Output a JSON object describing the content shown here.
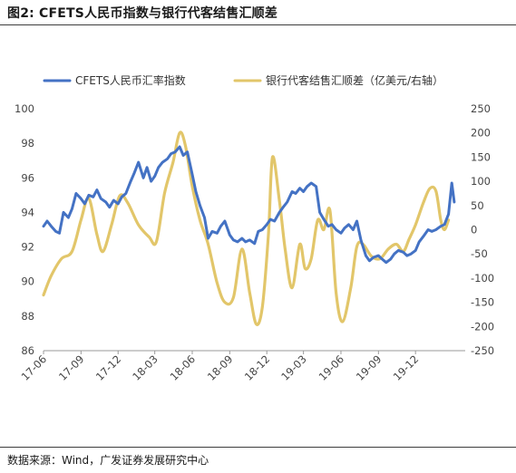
{
  "header": {
    "title": "图2:  CFETS人民币指数与银行代客结售汇顺差"
  },
  "footer": {
    "source": "数据来源：Wind，广发证券发展研究中心"
  },
  "chart_data": {
    "type": "line",
    "title": "",
    "xlabel": "",
    "ylabel": "",
    "x_tick_labels": [
      "17-06",
      "17-09",
      "17-12",
      "18-03",
      "18-06",
      "18-09",
      "18-12",
      "19-03",
      "19-06",
      "19-09",
      "19-12"
    ],
    "x_range": [
      "2017-06",
      "2020-04"
    ],
    "y_left": {
      "range": [
        86,
        100
      ],
      "ticks": [
        86,
        88,
        90,
        92,
        94,
        96,
        98,
        100
      ]
    },
    "y_right": {
      "range": [
        -250,
        250
      ],
      "ticks": [
        -250,
        -200,
        -150,
        -100,
        -50,
        0,
        50,
        100,
        150,
        200,
        250
      ]
    },
    "legend_position": "top",
    "grid": false,
    "series": [
      {
        "name": "CFETS人民币汇率指数",
        "color": "#4472c4",
        "axis": "left",
        "points": [
          [
            "2017-06-01",
            93.2
          ],
          [
            "2017-06-10",
            93.5
          ],
          [
            "2017-06-20",
            93.2
          ],
          [
            "2017-07-01",
            92.9
          ],
          [
            "2017-07-10",
            92.8
          ],
          [
            "2017-07-20",
            94.0
          ],
          [
            "2017-08-01",
            93.7
          ],
          [
            "2017-08-10",
            94.2
          ],
          [
            "2017-08-20",
            95.1
          ],
          [
            "2017-09-01",
            94.8
          ],
          [
            "2017-09-10",
            94.5
          ],
          [
            "2017-09-20",
            95.0
          ],
          [
            "2017-10-01",
            94.9
          ],
          [
            "2017-10-10",
            95.3
          ],
          [
            "2017-10-20",
            94.8
          ],
          [
            "2017-11-01",
            94.6
          ],
          [
            "2017-11-10",
            94.3
          ],
          [
            "2017-11-20",
            94.7
          ],
          [
            "2017-12-01",
            94.5
          ],
          [
            "2017-12-10",
            94.9
          ],
          [
            "2017-12-20",
            95.1
          ],
          [
            "2018-01-01",
            95.8
          ],
          [
            "2018-01-10",
            96.3
          ],
          [
            "2018-01-20",
            96.9
          ],
          [
            "2018-02-01",
            96.0
          ],
          [
            "2018-02-10",
            96.6
          ],
          [
            "2018-02-20",
            95.8
          ],
          [
            "2018-03-01",
            96.1
          ],
          [
            "2018-03-10",
            96.6
          ],
          [
            "2018-03-20",
            96.9
          ],
          [
            "2018-04-01",
            97.1
          ],
          [
            "2018-04-10",
            97.4
          ],
          [
            "2018-04-20",
            97.5
          ],
          [
            "2018-05-01",
            97.8
          ],
          [
            "2018-05-10",
            97.3
          ],
          [
            "2018-05-20",
            97.5
          ],
          [
            "2018-06-01",
            96.2
          ],
          [
            "2018-06-10",
            95.2
          ],
          [
            "2018-06-20",
            94.4
          ],
          [
            "2018-07-01",
            93.7
          ],
          [
            "2018-07-10",
            92.5
          ],
          [
            "2018-07-20",
            92.9
          ],
          [
            "2018-08-01",
            92.8
          ],
          [
            "2018-08-10",
            93.2
          ],
          [
            "2018-08-20",
            93.5
          ],
          [
            "2018-09-01",
            92.7
          ],
          [
            "2018-09-10",
            92.4
          ],
          [
            "2018-09-20",
            92.3
          ],
          [
            "2018-10-01",
            92.5
          ],
          [
            "2018-10-10",
            92.3
          ],
          [
            "2018-10-20",
            92.4
          ],
          [
            "2018-11-01",
            92.2
          ],
          [
            "2018-11-10",
            92.9
          ],
          [
            "2018-11-20",
            93.0
          ],
          [
            "2018-12-01",
            93.3
          ],
          [
            "2018-12-10",
            93.6
          ],
          [
            "2018-12-20",
            93.5
          ],
          [
            "2019-01-01",
            94.0
          ],
          [
            "2019-01-10",
            94.3
          ],
          [
            "2019-01-20",
            94.6
          ],
          [
            "2019-02-01",
            95.2
          ],
          [
            "2019-02-10",
            95.1
          ],
          [
            "2019-02-20",
            95.4
          ],
          [
            "2019-03-01",
            95.2
          ],
          [
            "2019-03-10",
            95.5
          ],
          [
            "2019-03-20",
            95.7
          ],
          [
            "2019-04-01",
            95.5
          ],
          [
            "2019-04-10",
            94.0
          ],
          [
            "2019-04-20",
            93.6
          ],
          [
            "2019-05-01",
            93.2
          ],
          [
            "2019-05-10",
            93.3
          ],
          [
            "2019-05-20",
            93.0
          ],
          [
            "2019-06-01",
            92.8
          ],
          [
            "2019-06-10",
            93.1
          ],
          [
            "2019-06-20",
            93.3
          ],
          [
            "2019-07-01",
            93.0
          ],
          [
            "2019-07-10",
            93.5
          ],
          [
            "2019-07-20",
            92.4
          ],
          [
            "2019-08-01",
            91.5
          ],
          [
            "2019-08-10",
            91.2
          ],
          [
            "2019-08-20",
            91.4
          ],
          [
            "2019-09-01",
            91.5
          ],
          [
            "2019-09-10",
            91.3
          ],
          [
            "2019-09-20",
            91.1
          ],
          [
            "2019-10-01",
            91.3
          ],
          [
            "2019-10-10",
            91.6
          ],
          [
            "2019-10-20",
            91.8
          ],
          [
            "2019-11-01",
            91.7
          ],
          [
            "2019-11-10",
            91.5
          ],
          [
            "2019-11-20",
            91.6
          ],
          [
            "2019-12-01",
            91.8
          ],
          [
            "2019-12-10",
            92.3
          ],
          [
            "2019-12-20",
            92.6
          ],
          [
            "2020-01-01",
            93.0
          ],
          [
            "2020-01-10",
            92.9
          ],
          [
            "2020-01-20",
            93.0
          ],
          [
            "2020-02-01",
            93.2
          ],
          [
            "2020-02-10",
            93.3
          ],
          [
            "2020-02-20",
            93.9
          ],
          [
            "2020-02-28",
            95.7
          ],
          [
            "2020-03-05",
            94.6
          ]
        ]
      },
      {
        "name": "银行代客结售汇顺差（亿美元/右轴）",
        "color": "#e2c66a",
        "axis": "right",
        "points": [
          [
            "2017-06-01",
            -135
          ],
          [
            "2017-06-20",
            -95
          ],
          [
            "2017-07-15",
            -60
          ],
          [
            "2017-08-10",
            -45
          ],
          [
            "2017-09-01",
            20
          ],
          [
            "2017-09-20",
            65
          ],
          [
            "2017-10-10",
            -10
          ],
          [
            "2017-10-25",
            -45
          ],
          [
            "2017-11-15",
            10
          ],
          [
            "2017-12-05",
            70
          ],
          [
            "2017-12-25",
            55
          ],
          [
            "2018-01-20",
            10
          ],
          [
            "2018-02-15",
            -15
          ],
          [
            "2018-03-05",
            -25
          ],
          [
            "2018-03-25",
            75
          ],
          [
            "2018-04-15",
            140
          ],
          [
            "2018-05-01",
            200
          ],
          [
            "2018-05-15",
            175
          ],
          [
            "2018-06-01",
            90
          ],
          [
            "2018-06-20",
            20
          ],
          [
            "2018-07-10",
            -30
          ],
          [
            "2018-08-01",
            -110
          ],
          [
            "2018-08-20",
            -150
          ],
          [
            "2018-09-10",
            -140
          ],
          [
            "2018-10-01",
            -40
          ],
          [
            "2018-10-20",
            -130
          ],
          [
            "2018-11-05",
            -195
          ],
          [
            "2018-11-20",
            -160
          ],
          [
            "2018-12-05",
            -10
          ],
          [
            "2018-12-15",
            150
          ],
          [
            "2019-01-01",
            60
          ],
          [
            "2019-01-15",
            -40
          ],
          [
            "2019-02-01",
            -120
          ],
          [
            "2019-02-20",
            -30
          ],
          [
            "2019-03-05",
            -80
          ],
          [
            "2019-03-20",
            -60
          ],
          [
            "2019-04-05",
            20
          ],
          [
            "2019-04-20",
            0
          ],
          [
            "2019-05-05",
            40
          ],
          [
            "2019-05-20",
            -130
          ],
          [
            "2019-06-05",
            -190
          ],
          [
            "2019-06-25",
            -120
          ],
          [
            "2019-07-10",
            -35
          ],
          [
            "2019-07-25",
            -30
          ],
          [
            "2019-08-15",
            -55
          ],
          [
            "2019-09-05",
            -60
          ],
          [
            "2019-09-25",
            -40
          ],
          [
            "2019-10-15",
            -30
          ],
          [
            "2019-11-01",
            -45
          ],
          [
            "2019-11-15",
            -20
          ],
          [
            "2019-12-01",
            10
          ],
          [
            "2019-12-20",
            55
          ],
          [
            "2020-01-05",
            85
          ],
          [
            "2020-01-20",
            80
          ],
          [
            "2020-02-01",
            20
          ],
          [
            "2020-02-10",
            0
          ],
          [
            "2020-02-20",
            20
          ]
        ]
      }
    ]
  }
}
